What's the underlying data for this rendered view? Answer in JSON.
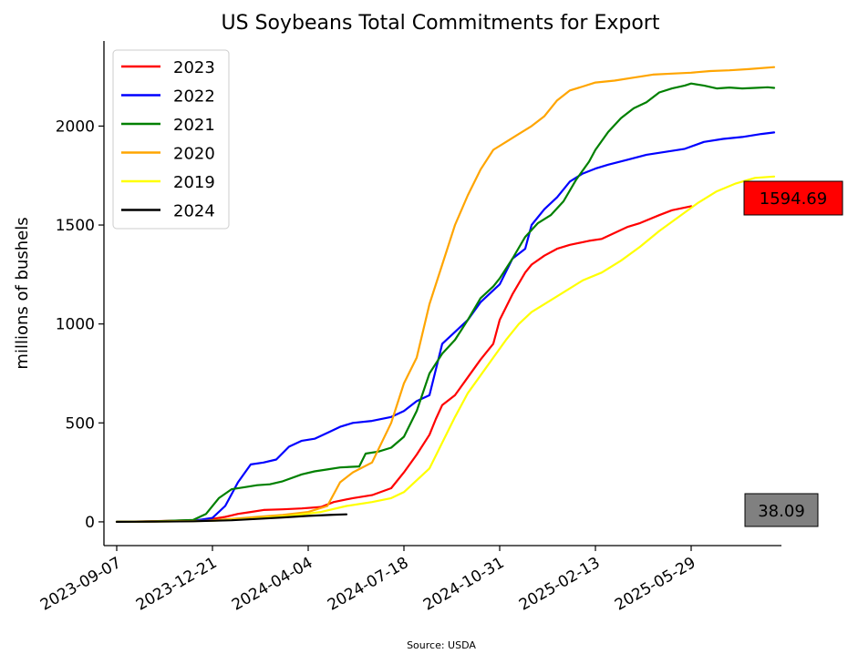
{
  "chart_data": {
    "type": "line",
    "title": "US Soybeans Total Commitments for Export",
    "ylabel": "millions of bushels",
    "xlabel": "",
    "source": "Source: USDA",
    "x_axis_type": "date",
    "xlim": [
      "2023-08-24",
      "2025-09-05"
    ],
    "ylim": [
      -120,
      2430
    ],
    "x_ticks": [
      "2023-09-07",
      "2023-12-21",
      "2024-04-04",
      "2024-07-18",
      "2024-10-31",
      "2025-02-13",
      "2025-05-29"
    ],
    "y_ticks": [
      0,
      500,
      1000,
      1500,
      2000
    ],
    "grid": false,
    "legend_position": "top-left",
    "series": [
      {
        "name": "2023",
        "color": "#ff0000",
        "points": [
          [
            "2023-09-07",
            0
          ],
          [
            "2023-10-05",
            2
          ],
          [
            "2023-11-02",
            5
          ],
          [
            "2023-12-07",
            10
          ],
          [
            "2023-12-21",
            15
          ],
          [
            "2024-01-04",
            25
          ],
          [
            "2024-01-18",
            40
          ],
          [
            "2024-02-01",
            50
          ],
          [
            "2024-02-15",
            60
          ],
          [
            "2024-03-07",
            63
          ],
          [
            "2024-03-28",
            68
          ],
          [
            "2024-04-18",
            75
          ],
          [
            "2024-05-02",
            100
          ],
          [
            "2024-05-23",
            120
          ],
          [
            "2024-06-13",
            135
          ],
          [
            "2024-07-04",
            170
          ],
          [
            "2024-07-18",
            250
          ],
          [
            "2024-08-01",
            340
          ],
          [
            "2024-08-15",
            440
          ],
          [
            "2024-08-22",
            520
          ],
          [
            "2024-08-29",
            590
          ],
          [
            "2024-09-12",
            640
          ],
          [
            "2024-09-26",
            730
          ],
          [
            "2024-10-10",
            820
          ],
          [
            "2024-10-24",
            900
          ],
          [
            "2024-10-31",
            1020
          ],
          [
            "2024-11-14",
            1150
          ],
          [
            "2024-11-28",
            1260
          ],
          [
            "2024-12-05",
            1300
          ],
          [
            "2024-12-19",
            1345
          ],
          [
            "2025-01-02",
            1380
          ],
          [
            "2025-01-16",
            1400
          ],
          [
            "2025-02-06",
            1420
          ],
          [
            "2025-02-20",
            1430
          ],
          [
            "2025-03-06",
            1460
          ],
          [
            "2025-03-20",
            1490
          ],
          [
            "2025-04-03",
            1510
          ],
          [
            "2025-04-24",
            1550
          ],
          [
            "2025-05-08",
            1575
          ],
          [
            "2025-05-29",
            1595
          ]
        ]
      },
      {
        "name": "2022",
        "color": "#0000ff",
        "points": [
          [
            "2023-09-07",
            0
          ],
          [
            "2023-10-19",
            2
          ],
          [
            "2023-11-30",
            5
          ],
          [
            "2023-12-21",
            20
          ],
          [
            "2024-01-04",
            80
          ],
          [
            "2024-01-18",
            200
          ],
          [
            "2024-02-01",
            290
          ],
          [
            "2024-02-15",
            300
          ],
          [
            "2024-02-29",
            315
          ],
          [
            "2024-03-14",
            380
          ],
          [
            "2024-03-28",
            410
          ],
          [
            "2024-04-11",
            420
          ],
          [
            "2024-04-25",
            450
          ],
          [
            "2024-05-09",
            480
          ],
          [
            "2024-05-23",
            500
          ],
          [
            "2024-06-13",
            510
          ],
          [
            "2024-07-04",
            530
          ],
          [
            "2024-07-18",
            560
          ],
          [
            "2024-08-01",
            610
          ],
          [
            "2024-08-15",
            640
          ],
          [
            "2024-08-29",
            900
          ],
          [
            "2024-09-12",
            960
          ],
          [
            "2024-09-26",
            1020
          ],
          [
            "2024-10-10",
            1110
          ],
          [
            "2024-10-24",
            1170
          ],
          [
            "2024-10-31",
            1200
          ],
          [
            "2024-11-14",
            1330
          ],
          [
            "2024-11-28",
            1380
          ],
          [
            "2024-12-05",
            1500
          ],
          [
            "2024-12-19",
            1580
          ],
          [
            "2025-01-02",
            1640
          ],
          [
            "2025-01-16",
            1720
          ],
          [
            "2025-01-30",
            1760
          ],
          [
            "2025-02-13",
            1785
          ],
          [
            "2025-02-27",
            1805
          ],
          [
            "2025-03-20",
            1830
          ],
          [
            "2025-04-10",
            1855
          ],
          [
            "2025-05-01",
            1870
          ],
          [
            "2025-05-22",
            1885
          ],
          [
            "2025-06-12",
            1920
          ],
          [
            "2025-07-03",
            1935
          ],
          [
            "2025-07-24",
            1945
          ],
          [
            "2025-08-14",
            1960
          ],
          [
            "2025-08-28",
            1968
          ]
        ]
      },
      {
        "name": "2021",
        "color": "#008000",
        "points": [
          [
            "2023-09-07",
            0
          ],
          [
            "2023-10-19",
            3
          ],
          [
            "2023-11-30",
            10
          ],
          [
            "2023-12-14",
            40
          ],
          [
            "2023-12-28",
            120
          ],
          [
            "2024-01-11",
            165
          ],
          [
            "2024-01-25",
            175
          ],
          [
            "2024-02-08",
            185
          ],
          [
            "2024-02-22",
            190
          ],
          [
            "2024-03-07",
            205
          ],
          [
            "2024-03-28",
            240
          ],
          [
            "2024-04-11",
            255
          ],
          [
            "2024-04-25",
            265
          ],
          [
            "2024-05-09",
            275
          ],
          [
            "2024-05-30",
            280
          ],
          [
            "2024-06-06",
            345
          ],
          [
            "2024-06-20",
            355
          ],
          [
            "2024-07-04",
            375
          ],
          [
            "2024-07-18",
            430
          ],
          [
            "2024-08-01",
            560
          ],
          [
            "2024-08-15",
            750
          ],
          [
            "2024-08-29",
            850
          ],
          [
            "2024-09-12",
            920
          ],
          [
            "2024-09-26",
            1020
          ],
          [
            "2024-10-10",
            1130
          ],
          [
            "2024-10-24",
            1190
          ],
          [
            "2024-10-31",
            1230
          ],
          [
            "2024-11-14",
            1330
          ],
          [
            "2024-11-28",
            1440
          ],
          [
            "2024-12-12",
            1510
          ],
          [
            "2024-12-26",
            1550
          ],
          [
            "2025-01-09",
            1620
          ],
          [
            "2025-01-23",
            1730
          ],
          [
            "2025-02-06",
            1820
          ],
          [
            "2025-02-13",
            1880
          ],
          [
            "2025-02-27",
            1970
          ],
          [
            "2025-03-13",
            2040
          ],
          [
            "2025-03-27",
            2090
          ],
          [
            "2025-04-10",
            2120
          ],
          [
            "2025-04-24",
            2170
          ],
          [
            "2025-05-08",
            2190
          ],
          [
            "2025-05-22",
            2205
          ],
          [
            "2025-05-29",
            2215
          ],
          [
            "2025-06-12",
            2205
          ],
          [
            "2025-06-26",
            2190
          ],
          [
            "2025-07-10",
            2195
          ],
          [
            "2025-07-24",
            2190
          ],
          [
            "2025-08-07",
            2193
          ],
          [
            "2025-08-21",
            2196
          ],
          [
            "2025-08-28",
            2193
          ]
        ]
      },
      {
        "name": "2020",
        "color": "#ffa500",
        "points": [
          [
            "2023-09-07",
            0
          ],
          [
            "2023-10-19",
            2
          ],
          [
            "2023-12-14",
            5
          ],
          [
            "2024-01-11",
            15
          ],
          [
            "2024-02-08",
            25
          ],
          [
            "2024-03-07",
            35
          ],
          [
            "2024-04-04",
            50
          ],
          [
            "2024-04-25",
            80
          ],
          [
            "2024-05-09",
            200
          ],
          [
            "2024-05-23",
            250
          ],
          [
            "2024-06-13",
            300
          ],
          [
            "2024-07-04",
            500
          ],
          [
            "2024-07-18",
            700
          ],
          [
            "2024-08-01",
            830
          ],
          [
            "2024-08-15",
            1100
          ],
          [
            "2024-08-29",
            1300
          ],
          [
            "2024-09-12",
            1500
          ],
          [
            "2024-09-26",
            1650
          ],
          [
            "2024-10-10",
            1780
          ],
          [
            "2024-10-24",
            1880
          ],
          [
            "2024-11-07",
            1920
          ],
          [
            "2024-11-21",
            1960
          ],
          [
            "2024-12-05",
            2000
          ],
          [
            "2024-12-19",
            2050
          ],
          [
            "2025-01-02",
            2130
          ],
          [
            "2025-01-16",
            2180
          ],
          [
            "2025-01-30",
            2200
          ],
          [
            "2025-02-13",
            2220
          ],
          [
            "2025-03-06",
            2230
          ],
          [
            "2025-03-27",
            2245
          ],
          [
            "2025-04-17",
            2260
          ],
          [
            "2025-05-08",
            2265
          ],
          [
            "2025-05-29",
            2270
          ],
          [
            "2025-06-19",
            2278
          ],
          [
            "2025-07-10",
            2282
          ],
          [
            "2025-07-31",
            2288
          ],
          [
            "2025-08-28",
            2298
          ]
        ]
      },
      {
        "name": "2019",
        "color": "#ffff00",
        "points": [
          [
            "2023-09-07",
            0
          ],
          [
            "2023-11-02",
            2
          ],
          [
            "2023-12-21",
            5
          ],
          [
            "2024-02-01",
            15
          ],
          [
            "2024-03-14",
            30
          ],
          [
            "2024-04-18",
            50
          ],
          [
            "2024-05-16",
            80
          ],
          [
            "2024-06-13",
            100
          ],
          [
            "2024-07-04",
            120
          ],
          [
            "2024-07-18",
            150
          ],
          [
            "2024-08-01",
            210
          ],
          [
            "2024-08-15",
            270
          ],
          [
            "2024-08-29",
            400
          ],
          [
            "2024-09-12",
            530
          ],
          [
            "2024-09-26",
            650
          ],
          [
            "2024-10-10",
            740
          ],
          [
            "2024-10-24",
            830
          ],
          [
            "2024-11-07",
            920
          ],
          [
            "2024-11-21",
            1000
          ],
          [
            "2024-12-05",
            1060
          ],
          [
            "2024-12-19",
            1100
          ],
          [
            "2025-01-09",
            1160
          ],
          [
            "2025-01-30",
            1220
          ],
          [
            "2025-02-20",
            1260
          ],
          [
            "2025-03-13",
            1320
          ],
          [
            "2025-04-03",
            1390
          ],
          [
            "2025-04-24",
            1470
          ],
          [
            "2025-05-15",
            1540
          ],
          [
            "2025-06-05",
            1610
          ],
          [
            "2025-06-26",
            1670
          ],
          [
            "2025-07-17",
            1710
          ],
          [
            "2025-08-07",
            1738
          ],
          [
            "2025-08-28",
            1745
          ]
        ]
      },
      {
        "name": "2024",
        "color": "#000000",
        "points": [
          [
            "2023-09-07",
            0
          ],
          [
            "2023-10-19",
            1
          ],
          [
            "2023-11-30",
            3
          ],
          [
            "2024-01-11",
            8
          ],
          [
            "2024-02-08",
            15
          ],
          [
            "2024-03-07",
            22
          ],
          [
            "2024-04-04",
            30
          ],
          [
            "2024-05-02",
            36
          ],
          [
            "2024-05-16",
            38
          ]
        ]
      }
    ],
    "annotations": [
      {
        "text": "1594.69",
        "background": "#ff0000"
      },
      {
        "text": "38.09",
        "background": "#808080"
      }
    ]
  }
}
